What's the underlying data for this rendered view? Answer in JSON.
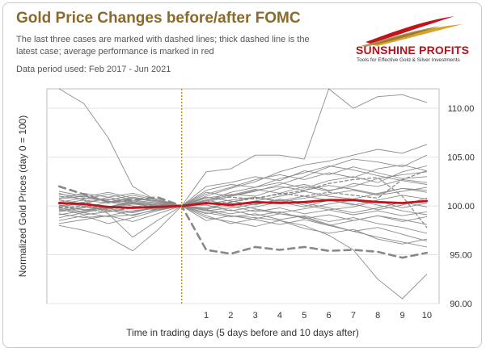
{
  "header": {
    "title": "Gold Price Changes before/after FOMC",
    "subtitle": "The last three cases are marked with dashed lines; thick dashed line is the latest case; average performance is marked in red",
    "period": "Data period used: Feb 2017 - Jun 2021"
  },
  "logo": {
    "name": "SUNSHINE PROFITS",
    "tagline": "Tools for Effective Gold & Silver Investments"
  },
  "chart_data": {
    "type": "line",
    "xlabel": "Time in trading days (5 days before and 10 days after)",
    "ylabel": "Normalized Gold Prices (day 0 = 100)",
    "x": [
      -5,
      -4,
      -3,
      -2,
      -1,
      0,
      1,
      2,
      3,
      4,
      5,
      6,
      7,
      8,
      9,
      10
    ],
    "xtick_labels": [
      "1",
      "2",
      "3",
      "4",
      "5",
      "6",
      "7",
      "8",
      "9",
      "10"
    ],
    "ylim": [
      90,
      112
    ],
    "yticks": [
      90,
      95,
      100,
      105,
      110
    ],
    "ytick_labels": [
      "90.00",
      "95.00",
      "100.00",
      "105.00",
      "110.00"
    ],
    "y_axis_side": "right",
    "event_day": 0,
    "grid": "horizontal",
    "colors": {
      "background_lines": "#8c8c8c",
      "average": "#c0141c",
      "event_line": "#b8860b",
      "title": "#8a6a2a"
    },
    "series": [
      {
        "values": [
          112.0,
          110.5,
          107.0,
          102.0,
          100.5,
          100.0,
          99.5,
          99.0,
          98.8,
          98.5,
          98.0,
          97.0,
          95.5,
          92.5,
          90.5,
          93.0
        ]
      },
      {
        "values": [
          98.5,
          99.0,
          98.2,
          98.8,
          99.5,
          100.0,
          103.5,
          103.8,
          105.2,
          105.2,
          104.8,
          112.0,
          110.0,
          111.2,
          111.4,
          110.6
        ]
      },
      {
        "values": [
          100.2,
          100.6,
          100.3,
          100.8,
          100.4,
          100.0,
          101.0,
          101.8,
          102.5,
          103.5,
          104.2,
          104.6,
          105.2,
          105.8,
          105.4,
          106.3
        ]
      },
      {
        "values": [
          99.6,
          99.3,
          99.8,
          100.2,
          100.1,
          100.0,
          100.4,
          101.0,
          101.5,
          102.2,
          103.0,
          104.0,
          104.8,
          104.5,
          104.0,
          105.2
        ]
      },
      {
        "values": [
          100.4,
          100.8,
          100.5,
          100.2,
          99.9,
          100.0,
          99.6,
          99.2,
          99.6,
          99.2,
          98.8,
          98.0,
          97.4,
          96.8,
          96.3,
          95.8
        ]
      },
      {
        "values": [
          99.2,
          98.8,
          99.0,
          99.5,
          99.8,
          100.0,
          100.8,
          101.2,
          101.0,
          101.8,
          102.2,
          101.6,
          102.0,
          102.8,
          103.2,
          103.5
        ]
      },
      {
        "values": [
          101.0,
          100.7,
          101.2,
          100.6,
          100.3,
          100.0,
          100.2,
          100.6,
          100.9,
          100.4,
          100.8,
          101.2,
          101.6,
          101.1,
          101.5,
          101.9
        ]
      },
      {
        "values": [
          98.8,
          99.3,
          98.9,
          99.1,
          99.6,
          100.0,
          99.3,
          98.9,
          99.2,
          98.6,
          99.0,
          98.4,
          98.8,
          98.2,
          97.8,
          97.2
        ]
      },
      {
        "values": [
          100.6,
          100.2,
          100.9,
          101.3,
          100.7,
          100.0,
          100.5,
          101.4,
          101.9,
          102.4,
          101.8,
          102.6,
          103.0,
          102.4,
          103.5,
          104.1
        ]
      },
      {
        "values": [
          99.9,
          100.3,
          99.7,
          99.4,
          99.8,
          100.0,
          99.5,
          99.8,
          100.2,
          100.6,
          100.1,
          99.6,
          99.9,
          100.5,
          99.8,
          100.3
        ]
      },
      {
        "values": [
          101.5,
          101.0,
          100.4,
          100.9,
          100.5,
          100.0,
          98.8,
          98.4,
          97.9,
          98.5,
          97.7,
          97.2,
          97.6,
          96.6,
          96.1,
          96.6
        ]
      },
      {
        "values": [
          99.4,
          99.8,
          100.4,
          100.0,
          99.7,
          100.0,
          101.6,
          102.2,
          101.9,
          102.8,
          103.4,
          104.1,
          103.7,
          103.1,
          102.6,
          102.2
        ]
      },
      {
        "values": [
          100.1,
          99.6,
          99.9,
          100.5,
          100.2,
          100.0,
          100.9,
          100.5,
          100.1,
          100.7,
          100.3,
          99.8,
          99.3,
          99.8,
          100.4,
          99.9
        ]
      },
      {
        "values": [
          98.2,
          98.6,
          99.0,
          98.4,
          99.2,
          100.0,
          99.0,
          98.2,
          98.7,
          99.2,
          98.9,
          98.1,
          97.4,
          97.8,
          97.1,
          96.4
        ]
      },
      {
        "values": [
          100.8,
          101.3,
          100.9,
          100.4,
          100.1,
          100.0,
          101.2,
          101.9,
          102.7,
          103.2,
          102.7,
          103.4,
          102.9,
          103.8,
          104.2,
          103.6
        ]
      },
      {
        "values": [
          99.7,
          99.1,
          99.4,
          99.9,
          99.6,
          100.0,
          99.8,
          100.3,
          99.7,
          99.3,
          99.7,
          100.2,
          100.6,
          100.1,
          99.5,
          99.1
        ]
      },
      {
        "values": [
          100.3,
          100.0,
          99.5,
          99.3,
          99.9,
          100.0,
          100.6,
          100.1,
          100.5,
          101.0,
          101.5,
          101.0,
          100.7,
          101.3,
          101.8,
          101.4
        ]
      },
      {
        "values": [
          99.1,
          99.5,
          99.9,
          100.4,
          100.0,
          100.0,
          99.2,
          99.6,
          99.0,
          99.4,
          98.7,
          99.1,
          98.5,
          99.0,
          98.6,
          98.1
        ]
      },
      {
        "values": [
          101.2,
          100.9,
          101.4,
          100.8,
          100.5,
          100.0,
          102.0,
          102.4,
          103.0,
          102.6,
          103.6,
          103.2,
          104.0,
          103.4,
          102.8,
          103.0
        ]
      },
      {
        "values": [
          99.5,
          99.9,
          99.6,
          99.0,
          99.7,
          100.0,
          100.1,
          99.5,
          99.9,
          100.4,
          99.9,
          100.6,
          100.2,
          99.6,
          100.1,
          100.8
        ]
      },
      {
        "values": [
          100.0,
          100.4,
          100.7,
          100.3,
          99.8,
          100.0,
          98.5,
          99.0,
          98.6,
          98.1,
          98.6,
          98.0,
          98.5,
          99.0,
          98.4,
          98.9
        ]
      },
      {
        "values": [
          98.0,
          97.5,
          96.8,
          95.4,
          97.5,
          100.0,
          100.6,
          101.1,
          101.7,
          101.3,
          102.0,
          101.5,
          102.3,
          102.0,
          102.7,
          102.4
        ]
      },
      {
        "values": [
          101.3,
          100.6,
          99.2,
          96.8,
          98.5,
          100.0,
          99.6,
          100.4,
          100.9,
          100.5,
          101.0,
          100.6,
          100.1,
          100.6,
          101.1,
          100.7
        ]
      },
      {
        "values": [
          100.7,
          101.0,
          100.6,
          101.1,
          100.6,
          100.0,
          101.4,
          101.0,
          101.6,
          102.0,
          101.6,
          102.1,
          101.7,
          101.2,
          101.8,
          101.6
        ]
      },
      {
        "values": [
          99.8,
          99.4,
          99.9,
          100.3,
          100.1,
          100.0,
          99.7,
          100.0,
          99.4,
          99.8,
          99.2,
          99.6,
          99.1,
          99.5,
          99.0,
          99.4
        ]
      },
      {
        "values": [
          99.8,
          100.0,
          99.7,
          99.9,
          100.1,
          100.0,
          100.6,
          100.9,
          100.7,
          101.3,
          101.0,
          101.4,
          101.1,
          100.8,
          102.7,
          103.6
        ],
        "style": "dashed"
      },
      {
        "values": [
          99.9,
          99.6,
          99.4,
          99.8,
          100.0,
          100.0,
          100.2,
          100.4,
          100.8,
          101.2,
          101.6,
          102.3,
          102.7,
          102.9,
          101.0,
          97.8
        ],
        "style": "dashed"
      },
      {
        "values": [
          102.0,
          101.2,
          100.4,
          100.6,
          100.9,
          100.0,
          95.5,
          95.1,
          95.8,
          95.5,
          95.8,
          95.4,
          95.5,
          95.3,
          94.7,
          95.2
        ],
        "style": "thick-dashed",
        "latest": true
      },
      {
        "name": "Average",
        "values": [
          100.3,
          100.2,
          99.9,
          99.8,
          99.9,
          100.0,
          100.3,
          100.1,
          100.4,
          100.3,
          100.4,
          100.6,
          100.6,
          100.4,
          100.3,
          100.5
        ],
        "style": "average"
      }
    ]
  }
}
